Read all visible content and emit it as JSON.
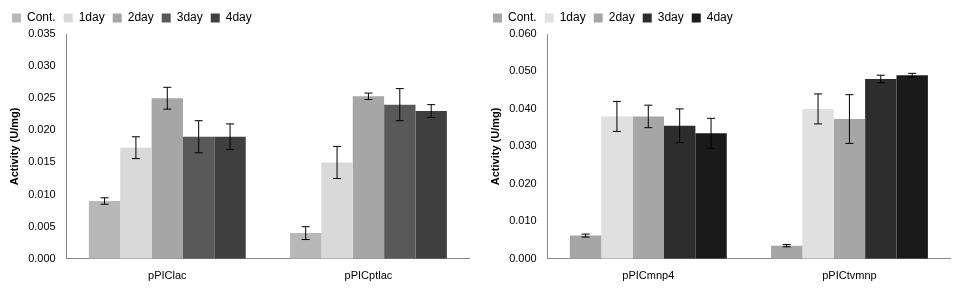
{
  "chart_data": [
    {
      "type": "bar",
      "y_label": "Activity (U/mg)",
      "categories": [
        "pPIClac",
        "pPICptlac"
      ],
      "series": [
        {
          "name": "Cont.",
          "color": "#b8b8b8",
          "values": [
            0.009,
            0.004
          ],
          "errors": [
            0.0005,
            0.001
          ]
        },
        {
          "name": "1day",
          "color": "#d9d9d9",
          "values": [
            0.0173,
            0.015
          ],
          "errors": [
            0.0017,
            0.0025
          ]
        },
        {
          "name": "2day",
          "color": "#a6a6a6",
          "values": [
            0.025,
            0.0253
          ],
          "errors": [
            0.0017,
            0.0005
          ]
        },
        {
          "name": "3day",
          "color": "#595959",
          "values": [
            0.019,
            0.024
          ],
          "errors": [
            0.0025,
            0.0025
          ]
        },
        {
          "name": "4day",
          "color": "#3f3f3f",
          "values": [
            0.019,
            0.023
          ],
          "errors": [
            0.002,
            0.001
          ]
        }
      ],
      "ylim": [
        0,
        0.035
      ],
      "yticks": [
        {
          "value": 0,
          "label": "0.000"
        },
        {
          "value": 0.005,
          "label": "0.005"
        },
        {
          "value": 0.01,
          "label": "0.010"
        },
        {
          "value": 0.015,
          "label": "0.015"
        },
        {
          "value": 0.02,
          "label": "0.020"
        },
        {
          "value": 0.025,
          "label": "0.025"
        },
        {
          "value": 0.03,
          "label": "0.030"
        },
        {
          "value": 0.035,
          "label": "0.035"
        }
      ],
      "grid": false,
      "legend": "top"
    },
    {
      "type": "bar",
      "y_label": "Activity (U/mg)",
      "categories": [
        "pPICmnp4",
        "pPICtvmnp"
      ],
      "series": [
        {
          "name": "Cont.",
          "color": "#a6a6a6",
          "values": [
            0.0062,
            0.0035
          ],
          "errors": [
            0.0004,
            0.0003
          ]
        },
        {
          "name": "1day",
          "color": "#e0e0e0",
          "values": [
            0.038,
            0.04
          ],
          "errors": [
            0.004,
            0.004
          ]
        },
        {
          "name": "2day",
          "color": "#a6a6a6",
          "values": [
            0.038,
            0.0373
          ],
          "errors": [
            0.003,
            0.0065
          ]
        },
        {
          "name": "3day",
          "color": "#2d2d2d",
          "values": [
            0.0355,
            0.048
          ],
          "errors": [
            0.0045,
            0.001
          ]
        },
        {
          "name": "4day",
          "color": "#1a1a1a",
          "values": [
            0.0335,
            0.049
          ],
          "errors": [
            0.004,
            0.0005
          ]
        }
      ],
      "ylim": [
        0,
        0.06
      ],
      "yticks": [
        {
          "value": 0,
          "label": "0.000"
        },
        {
          "value": 0.01,
          "label": "0.010"
        },
        {
          "value": 0.02,
          "label": "0.020"
        },
        {
          "value": 0.03,
          "label": "0.030"
        },
        {
          "value": 0.04,
          "label": "0.040"
        },
        {
          "value": 0.05,
          "label": "0.050"
        },
        {
          "value": 0.06,
          "label": "0.060"
        }
      ],
      "grid": false,
      "legend": "top"
    }
  ]
}
